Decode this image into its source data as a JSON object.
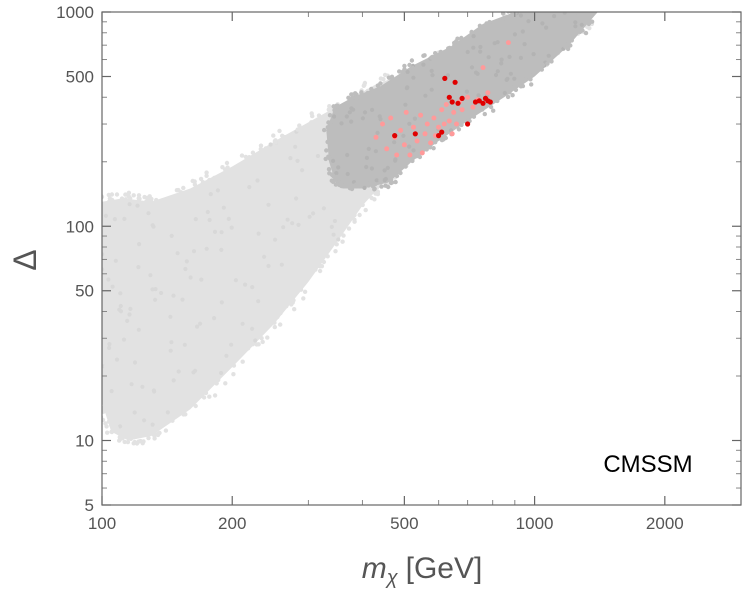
{
  "chart_data": {
    "type": "scatter",
    "xscale": "log",
    "yscale": "log",
    "xlim": [
      100,
      3000
    ],
    "ylim": [
      5,
      1000
    ],
    "x_ticks_major": [
      100,
      200,
      500,
      1000,
      2000
    ],
    "x_tick_labels": [
      "100",
      "200",
      "500",
      "1000",
      "2000"
    ],
    "y_ticks_major": [
      5,
      10,
      50,
      100,
      500,
      1000
    ],
    "y_tick_labels": [
      "5",
      "10",
      "50",
      "100",
      "500",
      "1000"
    ],
    "xlabel_main": "m",
    "xlabel_sub": "χ",
    "xlabel_unit": "[GeV]",
    "ylabel": "Δ",
    "annotation": "CMSSM",
    "colors": {
      "all_points": "#e2e2e2",
      "dark_region": "#bdbdbd",
      "light_red": "#ff9a9a",
      "red": "#e00000"
    },
    "regions": [
      {
        "name": "all-scan-points",
        "polygon": [
          [
            100,
            15
          ],
          [
            105,
            11
          ],
          [
            115,
            10
          ],
          [
            130,
            10.5
          ],
          [
            160,
            14
          ],
          [
            200,
            22
          ],
          [
            250,
            35
          ],
          [
            300,
            55
          ],
          [
            350,
            85
          ],
          [
            400,
            125
          ],
          [
            460,
            170
          ],
          [
            520,
            230
          ],
          [
            600,
            290
          ],
          [
            700,
            360
          ],
          [
            850,
            460
          ],
          [
            1000,
            560
          ],
          [
            1200,
            750
          ],
          [
            1400,
            1000
          ],
          [
            900,
            1000
          ],
          [
            700,
            720
          ],
          [
            560,
            560
          ],
          [
            430,
            460
          ],
          [
            330,
            340
          ],
          [
            260,
            260
          ],
          [
            200,
            190
          ],
          [
            160,
            150
          ],
          [
            130,
            130
          ],
          [
            112,
            135
          ],
          [
            100,
            130
          ]
        ]
      },
      {
        "name": "dark-subset",
        "polygon": [
          [
            345,
            165
          ],
          [
            360,
            150
          ],
          [
            400,
            150
          ],
          [
            460,
            160
          ],
          [
            520,
            200
          ],
          [
            600,
            250
          ],
          [
            700,
            310
          ],
          [
            850,
            400
          ],
          [
            1000,
            500
          ],
          [
            1200,
            700
          ],
          [
            1400,
            1000
          ],
          [
            900,
            1000
          ],
          [
            760,
            880
          ],
          [
            640,
            690
          ],
          [
            520,
            560
          ],
          [
            440,
            450
          ],
          [
            380,
            400
          ],
          [
            345,
            360
          ],
          [
            330,
            280
          ],
          [
            335,
            200
          ]
        ]
      }
    ],
    "series": [
      {
        "name": "light-red",
        "color": "#ff9a9a",
        "points": [
          [
            430,
            260
          ],
          [
            445,
            300
          ],
          [
            455,
            230
          ],
          [
            465,
            320
          ],
          [
            475,
            260
          ],
          [
            480,
            215
          ],
          [
            490,
            280
          ],
          [
            500,
            240
          ],
          [
            505,
            340
          ],
          [
            515,
            215
          ],
          [
            525,
            290
          ],
          [
            535,
            250
          ],
          [
            545,
            330
          ],
          [
            550,
            220
          ],
          [
            558,
            270
          ],
          [
            565,
            300
          ],
          [
            575,
            245
          ],
          [
            585,
            320
          ],
          [
            590,
            265
          ],
          [
            600,
            290
          ],
          [
            610,
            350
          ],
          [
            618,
            300
          ],
          [
            625,
            370
          ],
          [
            635,
            310
          ],
          [
            645,
            270
          ],
          [
            650,
            340
          ],
          [
            660,
            300
          ],
          [
            670,
            380
          ],
          [
            680,
            350
          ],
          [
            700,
            400
          ],
          [
            720,
            360
          ],
          [
            740,
            390
          ],
          [
            760,
            550
          ],
          [
            780,
            420
          ],
          [
            870,
            720
          ]
        ]
      },
      {
        "name": "red",
        "color": "#e00000",
        "points": [
          [
            475,
            265
          ],
          [
            530,
            270
          ],
          [
            600,
            265
          ],
          [
            610,
            275
          ],
          [
            620,
            490
          ],
          [
            635,
            400
          ],
          [
            645,
            380
          ],
          [
            655,
            470
          ],
          [
            665,
            375
          ],
          [
            680,
            395
          ],
          [
            700,
            300
          ],
          [
            730,
            380
          ],
          [
            745,
            385
          ],
          [
            760,
            375
          ],
          [
            770,
            395
          ],
          [
            780,
            385
          ],
          [
            790,
            380
          ]
        ]
      }
    ]
  }
}
